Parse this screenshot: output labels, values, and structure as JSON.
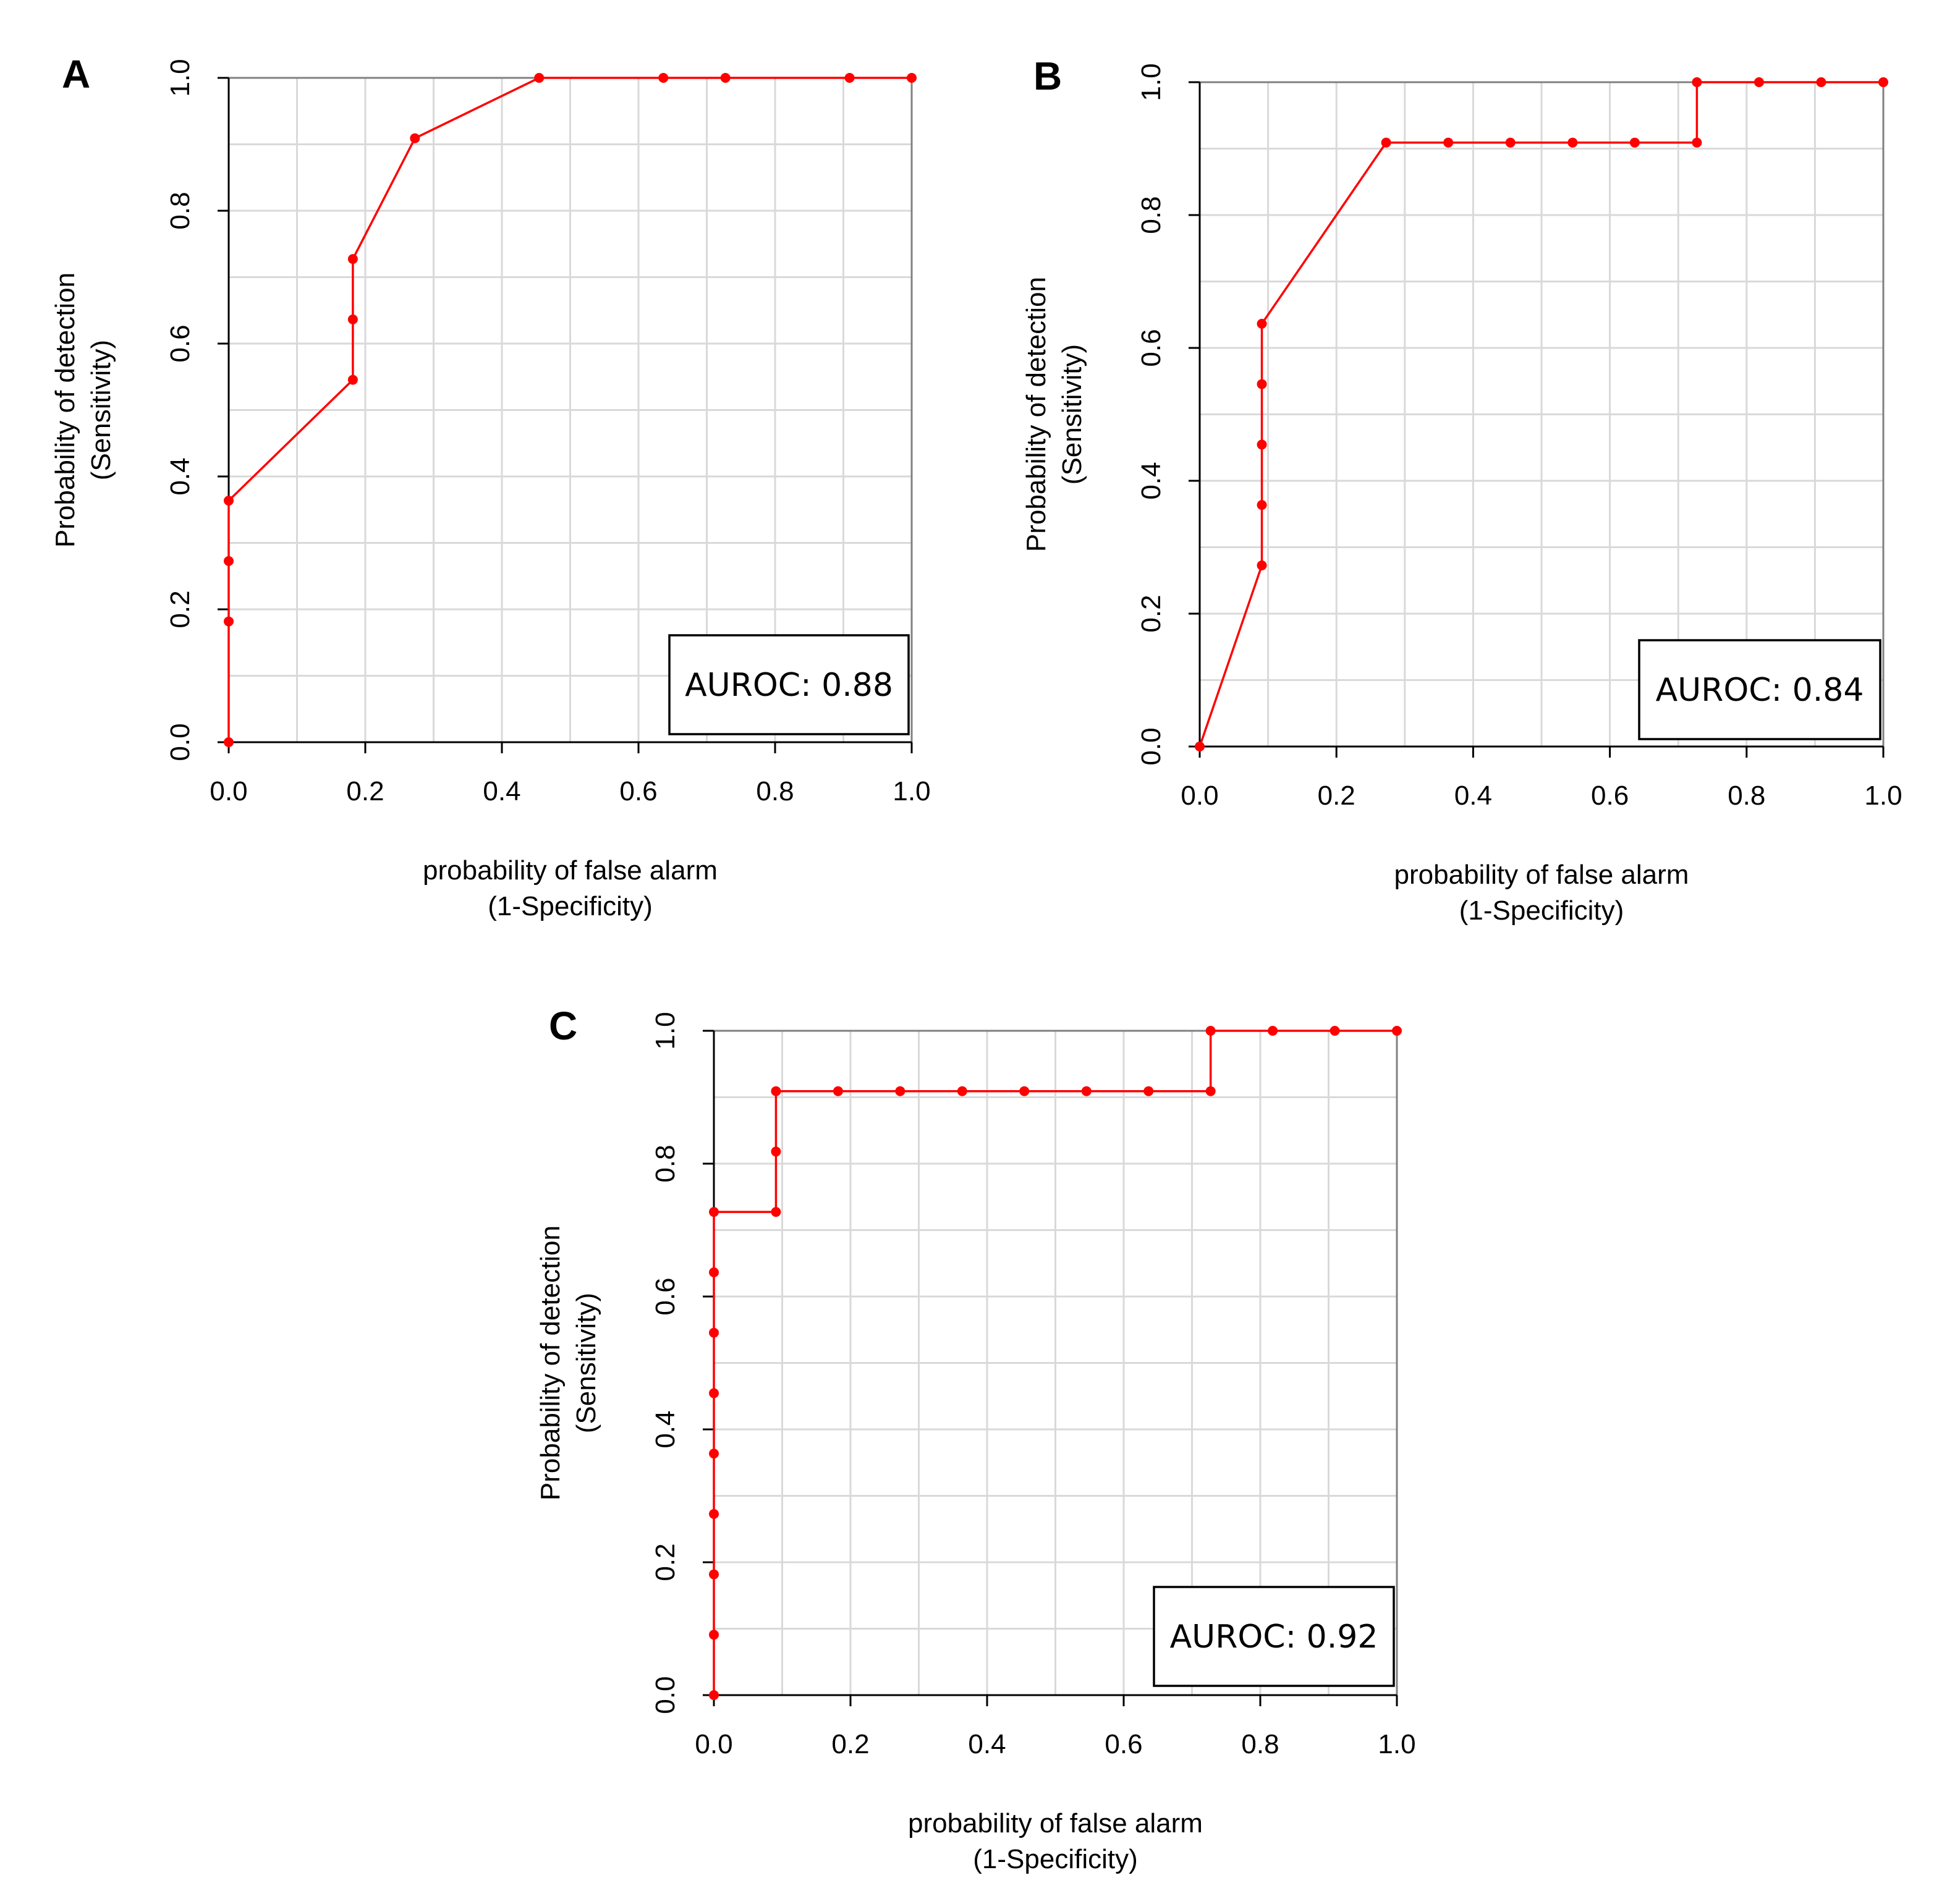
{
  "colors": {
    "curve": "#ff0000",
    "grid": "#d9d9d9",
    "axis": "#000000"
  },
  "chart_data": [
    {
      "panel": "A",
      "type": "line",
      "x": [
        0,
        0,
        0,
        0,
        0.1818,
        0.1818,
        0.1818,
        0.2727,
        0.4545,
        0.6364,
        0.7273,
        0.9091,
        1.0
      ],
      "y": [
        0,
        0.1818,
        0.2727,
        0.3636,
        0.5455,
        0.6364,
        0.7273,
        0.9091,
        1.0,
        1.0,
        1.0,
        1.0,
        1.0
      ],
      "xlabel": [
        "probability of false alarm",
        "(1-Specificity)"
      ],
      "ylabel": [
        "Probability of detection",
        "(Sensitivity)"
      ],
      "xlim": [
        0,
        1
      ],
      "ylim": [
        0,
        1
      ],
      "xticks": [
        "0.0",
        "0.2",
        "0.4",
        "0.6",
        "0.8",
        "1.0"
      ],
      "yticks": [
        "0.0",
        "0.2",
        "0.4",
        "0.6",
        "0.8",
        "1.0"
      ],
      "annotation": "AUROC: 0.88",
      "grid": true
    },
    {
      "panel": "B",
      "type": "line",
      "x": [
        0,
        0.0909,
        0.0909,
        0.0909,
        0.0909,
        0.0909,
        0.2727,
        0.3636,
        0.4545,
        0.5455,
        0.6364,
        0.7273,
        0.7273,
        0.8182,
        0.9091,
        1.0
      ],
      "y": [
        0,
        0.2727,
        0.3636,
        0.4545,
        0.5455,
        0.6364,
        0.9091,
        0.9091,
        0.9091,
        0.9091,
        0.9091,
        0.9091,
        1.0,
        1.0,
        1.0,
        1.0
      ],
      "xlabel": [
        "probability of false alarm",
        "(1-Specificity)"
      ],
      "ylabel": [
        "Probability of detection",
        "(Sensitivity)"
      ],
      "xlim": [
        0,
        1
      ],
      "ylim": [
        0,
        1
      ],
      "xticks": [
        "0.0",
        "0.2",
        "0.4",
        "0.6",
        "0.8",
        "1.0"
      ],
      "yticks": [
        "0.0",
        "0.2",
        "0.4",
        "0.6",
        "0.8",
        "1.0"
      ],
      "annotation": "AUROC: 0.84",
      "grid": true
    },
    {
      "panel": "C",
      "type": "line",
      "x": [
        0,
        0,
        0,
        0,
        0,
        0,
        0,
        0,
        0,
        0.0909,
        0.0909,
        0.0909,
        0.1818,
        0.2727,
        0.3636,
        0.4545,
        0.5455,
        0.6364,
        0.7273,
        0.7273,
        0.8182,
        0.9091,
        1.0
      ],
      "y": [
        0,
        0.0909,
        0.1818,
        0.2727,
        0.3636,
        0.4545,
        0.5455,
        0.6364,
        0.7273,
        0.7273,
        0.8182,
        0.9091,
        0.9091,
        0.9091,
        0.9091,
        0.9091,
        0.9091,
        0.9091,
        0.9091,
        1.0,
        1.0,
        1.0,
        1.0
      ],
      "xlabel": [
        "probability of false alarm",
        "(1-Specificity)"
      ],
      "ylabel": [
        "Probability of detection",
        "(Sensitivity)"
      ],
      "xlim": [
        0,
        1
      ],
      "ylim": [
        0,
        1
      ],
      "xticks": [
        "0.0",
        "0.2",
        "0.4",
        "0.6",
        "0.8",
        "1.0"
      ],
      "yticks": [
        "0.0",
        "0.2",
        "0.4",
        "0.6",
        "0.8",
        "1.0"
      ],
      "annotation": "AUROC: 0.92",
      "grid": true
    }
  ]
}
